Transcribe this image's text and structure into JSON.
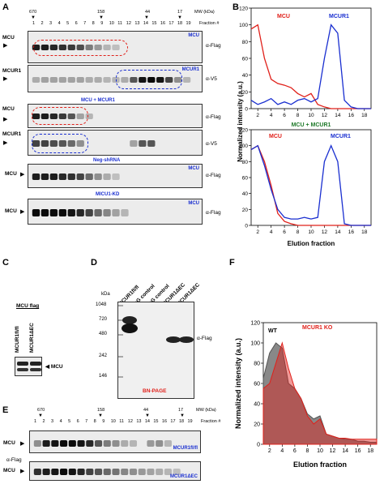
{
  "panels": {
    "A": "A",
    "B": "B",
    "C": "C",
    "D": "D",
    "E": "E",
    "F": "F"
  },
  "panelA": {
    "markers": [
      "670",
      "158",
      "44",
      "17"
    ],
    "mw_label": "MW (kDa)",
    "fraction_label": "Fraction #",
    "fractions": [
      "1",
      "2",
      "3",
      "4",
      "5",
      "6",
      "7",
      "8",
      "9",
      "10",
      "11",
      "12",
      "13",
      "14",
      "15",
      "16",
      "17",
      "18",
      "19"
    ],
    "blots": [
      {
        "left": "MCU",
        "title": "MCU",
        "ab": "α-Flag",
        "bands": [
          0.9,
          0.9,
          0.85,
          0.8,
          0.75,
          0.65,
          0.4,
          0.25,
          0.1,
          0.05,
          0,
          0,
          0,
          0,
          0,
          0,
          0,
          0,
          0
        ]
      },
      {
        "left": "MCUR1",
        "title": "MCUR1",
        "ab": "α-V5",
        "bands": [
          0.15,
          0.2,
          0.2,
          0.2,
          0.2,
          0.2,
          0.15,
          0.15,
          0.1,
          0.1,
          0.15,
          0.6,
          0.95,
          1,
          0.95,
          0.7,
          0.3,
          0.1,
          0
        ]
      },
      {
        "left": "MCU",
        "title": "",
        "ab": "α-Flag",
        "bands": [
          0.9,
          0.9,
          0.85,
          0.75,
          0.6,
          0.2,
          0.1,
          0,
          0,
          0,
          0,
          0,
          0,
          0,
          0,
          0,
          0,
          0,
          0
        ]
      },
      {
        "left": "MCUR1",
        "title": "",
        "ab": "α-V5",
        "bands": [
          0.7,
          0.7,
          0.65,
          0.6,
          0.5,
          0.3,
          0,
          0,
          0,
          0,
          0,
          0.2,
          0.6,
          0.6,
          0,
          0,
          0,
          0,
          0
        ]
      },
      {
        "left": "MCU",
        "title": "MCU",
        "ab": "α-Flag",
        "bands": [
          0.9,
          0.9,
          0.9,
          0.85,
          0.8,
          0.7,
          0.5,
          0.3,
          0.15,
          0.05,
          0,
          0,
          0,
          0,
          0,
          0,
          0,
          0,
          0
        ]
      },
      {
        "left": "MCU",
        "title": "MCU",
        "ab": "α-Flag",
        "bands": [
          1,
          1,
          1,
          1,
          0.95,
          0.85,
          0.7,
          0.5,
          0.35,
          0.2,
          0.1,
          0,
          0,
          0,
          0,
          0,
          0,
          0,
          0
        ]
      }
    ],
    "combo_title": "MCU + MCUR1",
    "neg_title": "Neg-shRNA",
    "kd_title": "MICU1-KD"
  },
  "chart_data": [
    {
      "type": "line",
      "title": "",
      "xlabel": "Elution fraction",
      "ylabel": "Normalized intensity (a.u.)",
      "xlim": [
        1,
        19
      ],
      "ylim": [
        0,
        120
      ],
      "xticks": [
        2,
        4,
        6,
        8,
        10,
        12,
        14,
        16,
        18
      ],
      "yticks": [
        0,
        20,
        40,
        60,
        80,
        100,
        120
      ],
      "series": [
        {
          "name": "MCU",
          "color": "#e0201a",
          "x": [
            1,
            2,
            3,
            4,
            5,
            6,
            7,
            8,
            9,
            10,
            11,
            12,
            13,
            14,
            15,
            16,
            17,
            18,
            19
          ],
          "y": [
            95,
            100,
            60,
            35,
            30,
            28,
            25,
            18,
            14,
            18,
            5,
            2,
            0,
            0,
            0,
            0,
            0,
            0,
            0
          ]
        },
        {
          "name": "MCUR1",
          "color": "#1a2fd0",
          "x": [
            1,
            2,
            3,
            4,
            5,
            6,
            7,
            8,
            9,
            10,
            11,
            12,
            13,
            14,
            15,
            16,
            17,
            18,
            19
          ],
          "y": [
            10,
            5,
            8,
            12,
            5,
            8,
            5,
            10,
            12,
            8,
            12,
            60,
            100,
            90,
            10,
            2,
            0,
            0,
            0
          ]
        }
      ]
    },
    {
      "type": "line",
      "title": "MCU + MCUR1",
      "xlabel": "Elution fraction",
      "ylabel": "Normalized intensity (a.u.)",
      "xlim": [
        1,
        19
      ],
      "ylim": [
        0,
        120
      ],
      "xticks": [
        2,
        4,
        6,
        8,
        10,
        12,
        14,
        16,
        18
      ],
      "yticks": [
        0,
        20,
        40,
        60,
        80,
        100,
        120
      ],
      "series": [
        {
          "name": "MCU",
          "color": "#e0201a",
          "x": [
            1,
            2,
            3,
            4,
            5,
            6,
            7,
            8,
            9,
            10,
            11,
            12,
            13,
            14,
            15,
            16,
            17,
            18,
            19
          ],
          "y": [
            95,
            100,
            80,
            50,
            15,
            5,
            2,
            0,
            0,
            0,
            0,
            0,
            0,
            0,
            0,
            0,
            0,
            0,
            0
          ]
        },
        {
          "name": "MCUR1",
          "color": "#1a2fd0",
          "x": [
            1,
            2,
            3,
            4,
            5,
            6,
            7,
            8,
            9,
            10,
            11,
            12,
            13,
            14,
            15,
            16,
            17,
            18,
            19
          ],
          "y": [
            95,
            100,
            75,
            45,
            20,
            10,
            8,
            8,
            10,
            8,
            10,
            80,
            100,
            80,
            2,
            0,
            0,
            0,
            0
          ]
        }
      ]
    },
    {
      "type": "area",
      "title": "",
      "xlabel": "Elution fraction",
      "ylabel": "Normalized intensity (a.u.)",
      "xlim": [
        1,
        19
      ],
      "ylim": [
        0,
        120
      ],
      "xticks": [
        2,
        4,
        6,
        8,
        10,
        12,
        14,
        16,
        18
      ],
      "yticks": [
        0,
        20,
        40,
        60,
        80,
        100,
        120
      ],
      "series": [
        {
          "name": "WT",
          "color": "#555555",
          "x": [
            1,
            2,
            3,
            4,
            5,
            6,
            7,
            8,
            9,
            10,
            11,
            12,
            13,
            14,
            15,
            16,
            17,
            18,
            19
          ],
          "y": [
            65,
            90,
            100,
            95,
            60,
            55,
            45,
            30,
            25,
            28,
            10,
            8,
            6,
            5,
            5,
            3,
            3,
            2,
            2
          ]
        },
        {
          "name": "MCUR1 KO",
          "color": "#e0201a",
          "x": [
            1,
            2,
            3,
            4,
            5,
            6,
            7,
            8,
            9,
            10,
            11,
            12,
            13,
            14,
            15,
            16,
            17,
            18,
            19
          ],
          "y": [
            55,
            60,
            80,
            100,
            75,
            55,
            45,
            28,
            20,
            25,
            10,
            8,
            6,
            6,
            5,
            5,
            5,
            5,
            5
          ]
        }
      ]
    }
  ],
  "panelC": {
    "title": "MCU flag",
    "lanes": [
      "MCUR1fl/fl",
      "MCUR1ΔEC"
    ],
    "label": "MCU"
  },
  "panelD": {
    "kda": "kDa",
    "mw": [
      "1048",
      "720",
      "480",
      "242",
      "146"
    ],
    "lanes": [
      "MCUR1fl/fl",
      "IgG control",
      "IgG control",
      "MCUR1ΔEC",
      "MCUR1ΔEC"
    ],
    "ab": "α-Flag",
    "footer": "BN-PAGE"
  },
  "panelE": {
    "markers": [
      "670",
      "158",
      "44",
      "17"
    ],
    "mw_label": "MW (kDa)",
    "fraction_label": "Fraction #",
    "fractions": [
      "1",
      "2",
      "3",
      "4",
      "5",
      "6",
      "7",
      "8",
      "9",
      "10",
      "11",
      "12",
      "13",
      "14",
      "15",
      "16",
      "17",
      "18",
      "19"
    ],
    "ab": "α-Flag",
    "blots": [
      {
        "left": "MCU",
        "tag": "MCUR1fl/fl",
        "bands": [
          0.3,
          0.9,
          0.95,
          1,
          1,
          0.95,
          0.85,
          0.6,
          0.4,
          0.3,
          0.15,
          0.1,
          0,
          0.25,
          0.3,
          0.1,
          0,
          0,
          0
        ]
      },
      {
        "left": "MCU",
        "tag": "MCUR1ΔEC",
        "bands": [
          0.8,
          0.9,
          0.95,
          1,
          0.95,
          0.85,
          0.7,
          0.6,
          0.5,
          0.45,
          0.35,
          0.3,
          0.25,
          0.2,
          0.15,
          0.1,
          0.05,
          0,
          0
        ]
      }
    ]
  }
}
